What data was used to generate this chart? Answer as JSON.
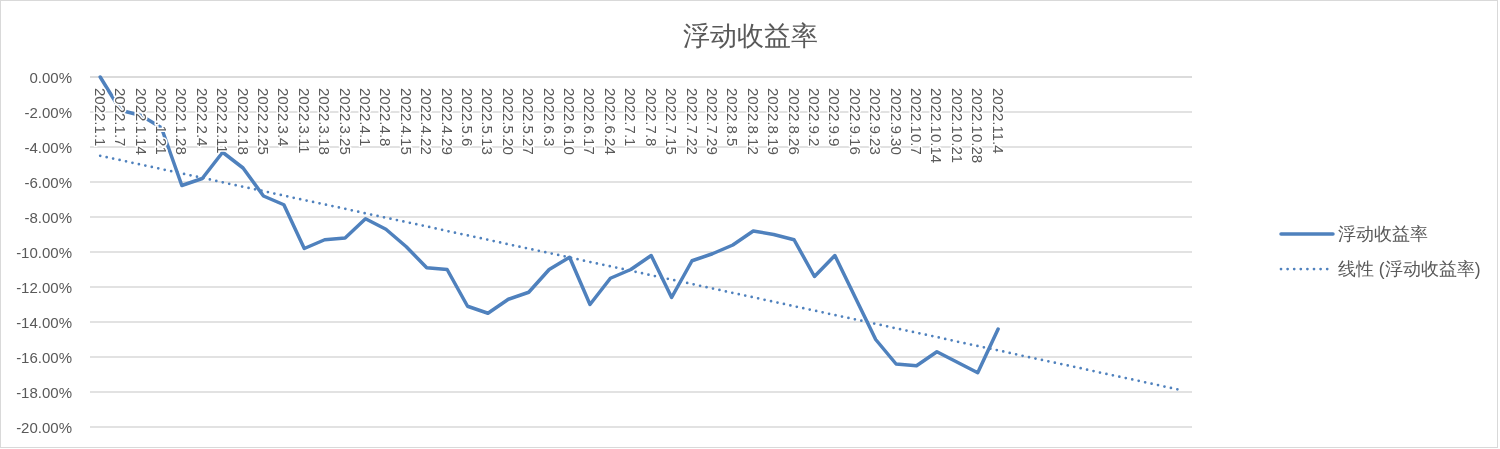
{
  "chart_data": {
    "type": "line",
    "title": "浮动收益率",
    "categories": [
      "2022.1.1",
      "2022.1.7",
      "2022.1.14",
      "2022.1.21",
      "2022.1.28",
      "2022.2.4",
      "2022.2.11",
      "2022.2.18",
      "2022.2.25",
      "2022.3.4",
      "2022.3.11",
      "2022.3.18",
      "2022.3.25",
      "2022.4.1",
      "2022.4.8",
      "2022.4.15",
      "2022.4.22",
      "2022.4.29",
      "2022.5.6",
      "2022.5.13",
      "2022.5.20",
      "2022.5.27",
      "2022.6.3",
      "2022.6.10",
      "2022.6.17",
      "2022.6.24",
      "2022.7.1",
      "2022.7.8",
      "2022.7.15",
      "2022.7.22",
      "2022.7.29",
      "2022.8.5",
      "2022.8.12",
      "2022.8.19",
      "2022.8.26",
      "2022.9.2",
      "2022.9.9",
      "2022.9.16",
      "2022.9.23",
      "2022.9.30",
      "2022.10.7",
      "2022.10.14",
      "2022.10.21",
      "2022.10.28",
      "2022.11.4",
      null,
      null,
      null,
      null,
      null,
      null,
      null,
      null,
      null
    ],
    "series": [
      {
        "name": "浮动收益率",
        "color": "#4f81bd",
        "line_style": "solid",
        "values": [
          0,
          -1.9,
          -2.2,
          -2.9,
          -6.2,
          -5.8,
          -4.3,
          -5.2,
          -6.8,
          -7.3,
          -9.8,
          -9.3,
          -9.2,
          -8.1,
          -8.7,
          -9.7,
          -10.9,
          -11.0,
          -13.1,
          -13.5,
          -12.7,
          -12.3,
          -11.0,
          -10.3,
          -13.0,
          -11.5,
          -11.0,
          -10.2,
          -12.6,
          -10.5,
          -10.1,
          -9.6,
          -8.8,
          -9.0,
          -9.3,
          -11.4,
          -10.2,
          -12.6,
          -15.0,
          -16.4,
          -16.5,
          -15.7,
          -16.3,
          -16.9,
          -14.4,
          null,
          null,
          null,
          null,
          null,
          null,
          null,
          null,
          null
        ]
      },
      {
        "name": "线性 (浮动收益率)",
        "color": "#4f81bd",
        "line_style": "dotted",
        "values": [
          -4.5,
          -4.75,
          -5.01,
          -5.26,
          -5.51,
          -5.76,
          -6.02,
          -6.27,
          -6.52,
          -6.78,
          -7.03,
          -7.28,
          -7.53,
          -7.79,
          -8.04,
          -8.29,
          -8.54,
          -8.8,
          -9.05,
          -9.3,
          -9.56,
          -9.81,
          -10.06,
          -10.31,
          -10.57,
          -10.82,
          -11.07,
          -11.33,
          -11.58,
          -11.83,
          -12.08,
          -12.34,
          -12.59,
          -12.84,
          -13.1,
          -13.35,
          -13.6,
          -13.85,
          -14.11,
          -14.36,
          -14.61,
          -14.86,
          -15.12,
          -15.37,
          -15.62,
          -15.88,
          -16.13,
          -16.38,
          -16.63,
          -16.89,
          -17.14,
          -17.39,
          -17.65,
          -17.9
        ]
      }
    ],
    "ylim": [
      -20,
      0
    ],
    "yticks": [
      {
        "value": 0,
        "label": "0.00%"
      },
      {
        "value": -2,
        "label": "-2.00%"
      },
      {
        "value": -4,
        "label": "-4.00%"
      },
      {
        "value": -6,
        "label": "-6.00%"
      },
      {
        "value": -8,
        "label": "-8.00%"
      },
      {
        "value": -10,
        "label": "-10.00%"
      },
      {
        "value": -12,
        "label": "-12.00%"
      },
      {
        "value": -14,
        "label": "-14.00%"
      },
      {
        "value": -16,
        "label": "-16.00%"
      },
      {
        "value": -18,
        "label": "-18.00%"
      },
      {
        "value": -20,
        "label": "-20.00%"
      }
    ],
    "grid": "y",
    "legend": "right"
  }
}
